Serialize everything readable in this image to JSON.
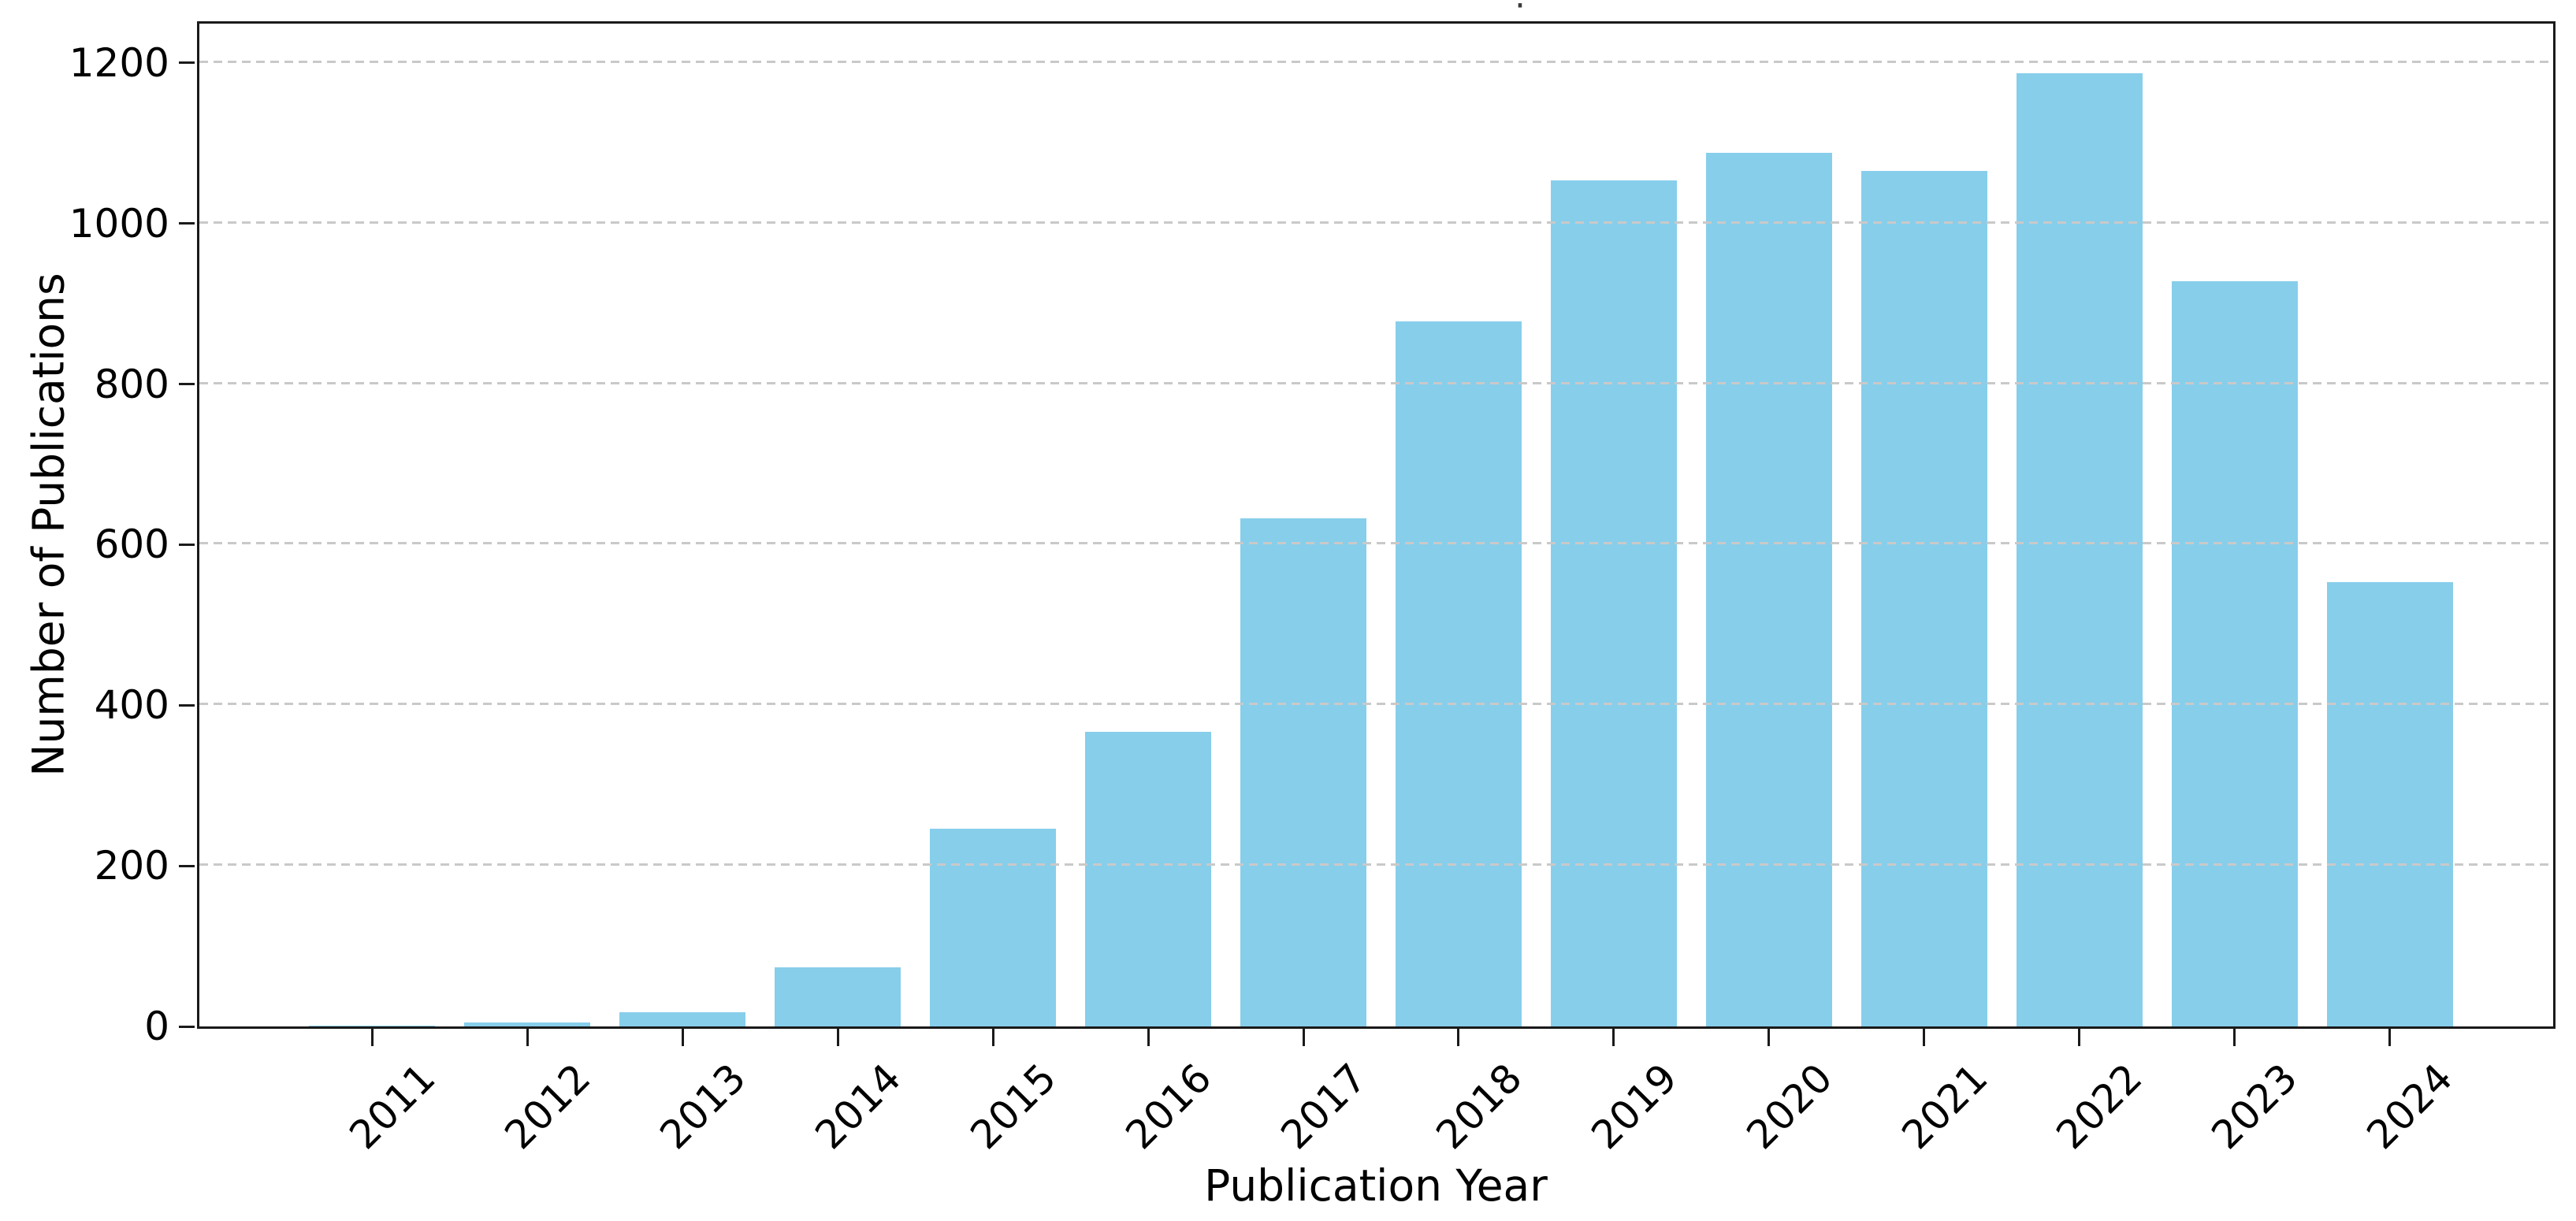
{
  "figure": {
    "background": "#ffffff",
    "axis_color": "#1a1a1a",
    "grid_color": "#c9c9c9",
    "grid_style": "dashed",
    "grid_above_bars": true
  },
  "chart_data": {
    "type": "bar",
    "title": "·",
    "xlabel": "Publication Year",
    "ylabel": "Number of Publications",
    "categories": [
      "2011",
      "2012",
      "2013",
      "2014",
      "2015",
      "2016",
      "2017",
      "2018",
      "2019",
      "2020",
      "2021",
      "2022",
      "2023",
      "2024"
    ],
    "values": [
      1,
      5,
      18,
      74,
      246,
      367,
      633,
      878,
      1054,
      1088,
      1066,
      1187,
      928,
      553
    ],
    "bar_color": "#87CEEB",
    "ylim": [
      0,
      1249
    ],
    "yticks": [
      0,
      200,
      400,
      600,
      800,
      1000,
      1200
    ],
    "xtick_rotation_deg": 45,
    "grid": "horizontal-dashed",
    "legend_position": "none"
  }
}
